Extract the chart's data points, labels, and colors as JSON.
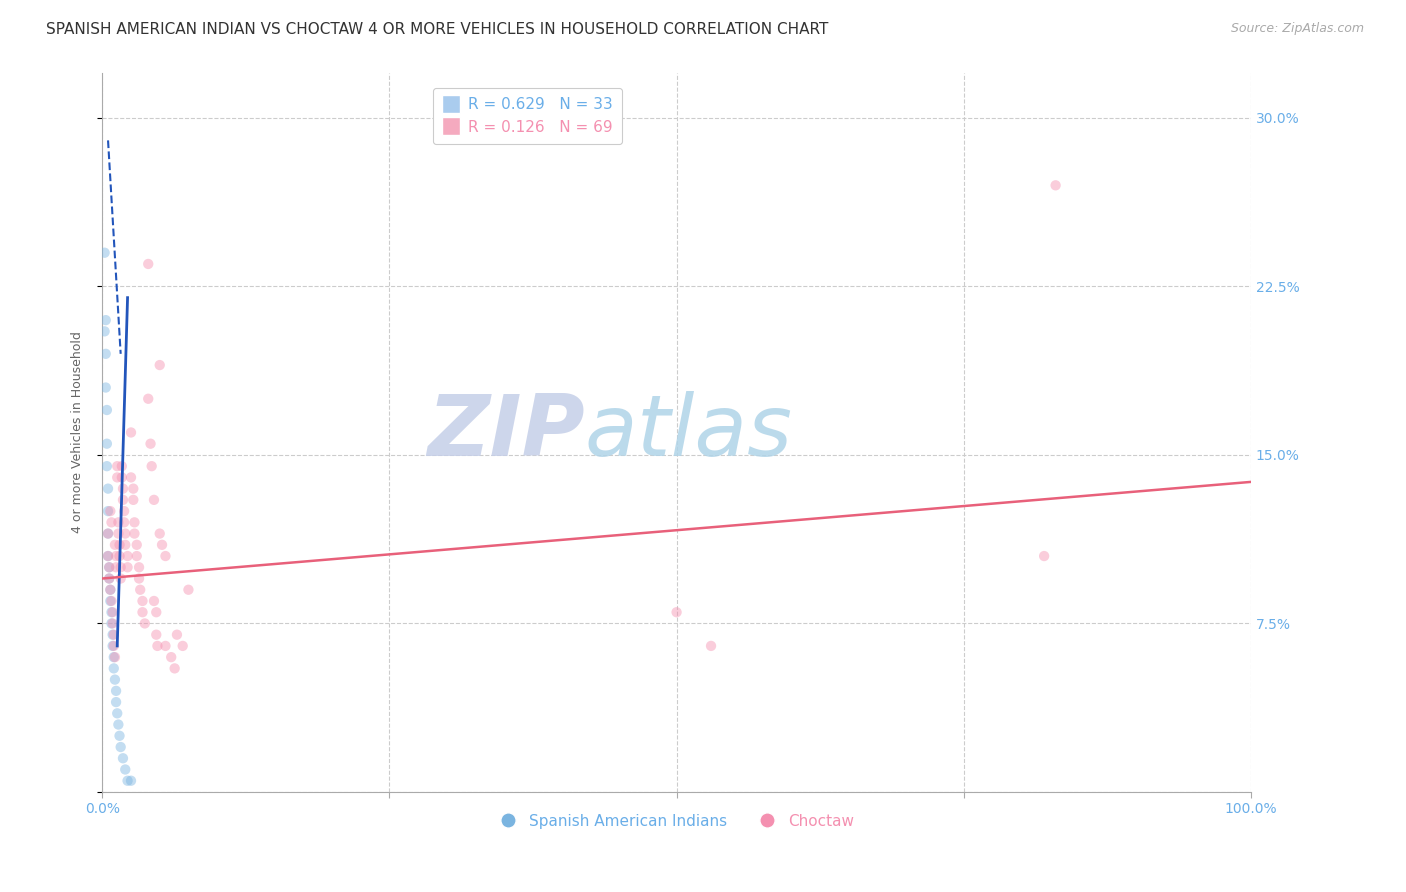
{
  "title": "SPANISH AMERICAN INDIAN VS CHOCTAW 4 OR MORE VEHICLES IN HOUSEHOLD CORRELATION CHART",
  "source": "Source: ZipAtlas.com",
  "ylabel": "4 or more Vehicles in Household",
  "watermark_zip": "ZIP",
  "watermark_atlas": "atlas",
  "xlim": [
    0,
    1.0
  ],
  "ylim": [
    0,
    0.32
  ],
  "yticks": [
    0.0,
    0.075,
    0.15,
    0.225,
    0.3
  ],
  "ytick_labels_right": [
    "",
    "7.5%",
    "15.0%",
    "22.5%",
    "30.0%"
  ],
  "xticks": [
    0.0,
    0.25,
    0.5,
    0.75,
    1.0
  ],
  "xtick_labels": [
    "0.0%",
    "",
    "",
    "",
    "100.0%"
  ],
  "axis_color": "#6aaee8",
  "grid_color": "#cccccc",
  "blue_scatter_x": [
    0.002,
    0.002,
    0.003,
    0.003,
    0.003,
    0.004,
    0.004,
    0.004,
    0.005,
    0.005,
    0.005,
    0.005,
    0.006,
    0.006,
    0.007,
    0.007,
    0.008,
    0.008,
    0.009,
    0.009,
    0.01,
    0.01,
    0.011,
    0.012,
    0.012,
    0.013,
    0.014,
    0.015,
    0.016,
    0.018,
    0.02,
    0.022,
    0.025
  ],
  "blue_scatter_y": [
    0.24,
    0.205,
    0.195,
    0.18,
    0.21,
    0.17,
    0.155,
    0.145,
    0.135,
    0.125,
    0.115,
    0.105,
    0.1,
    0.095,
    0.09,
    0.085,
    0.08,
    0.075,
    0.07,
    0.065,
    0.06,
    0.055,
    0.05,
    0.045,
    0.04,
    0.035,
    0.03,
    0.025,
    0.02,
    0.015,
    0.01,
    0.005,
    0.005
  ],
  "pink_scatter": [
    [
      0.005,
      0.115
    ],
    [
      0.005,
      0.105
    ],
    [
      0.006,
      0.1
    ],
    [
      0.006,
      0.095
    ],
    [
      0.007,
      0.09
    ],
    [
      0.007,
      0.125
    ],
    [
      0.008,
      0.12
    ],
    [
      0.008,
      0.085
    ],
    [
      0.009,
      0.08
    ],
    [
      0.009,
      0.075
    ],
    [
      0.01,
      0.07
    ],
    [
      0.01,
      0.065
    ],
    [
      0.011,
      0.06
    ],
    [
      0.011,
      0.11
    ],
    [
      0.012,
      0.105
    ],
    [
      0.012,
      0.1
    ],
    [
      0.013,
      0.145
    ],
    [
      0.013,
      0.14
    ],
    [
      0.014,
      0.12
    ],
    [
      0.014,
      0.115
    ],
    [
      0.015,
      0.11
    ],
    [
      0.015,
      0.105
    ],
    [
      0.016,
      0.1
    ],
    [
      0.016,
      0.095
    ],
    [
      0.017,
      0.145
    ],
    [
      0.017,
      0.14
    ],
    [
      0.018,
      0.135
    ],
    [
      0.018,
      0.13
    ],
    [
      0.019,
      0.125
    ],
    [
      0.019,
      0.12
    ],
    [
      0.02,
      0.115
    ],
    [
      0.02,
      0.11
    ],
    [
      0.022,
      0.105
    ],
    [
      0.022,
      0.1
    ],
    [
      0.025,
      0.16
    ],
    [
      0.025,
      0.14
    ],
    [
      0.027,
      0.135
    ],
    [
      0.027,
      0.13
    ],
    [
      0.028,
      0.12
    ],
    [
      0.028,
      0.115
    ],
    [
      0.03,
      0.11
    ],
    [
      0.03,
      0.105
    ],
    [
      0.032,
      0.1
    ],
    [
      0.032,
      0.095
    ],
    [
      0.033,
      0.09
    ],
    [
      0.035,
      0.085
    ],
    [
      0.035,
      0.08
    ],
    [
      0.037,
      0.075
    ],
    [
      0.04,
      0.235
    ],
    [
      0.04,
      0.175
    ],
    [
      0.042,
      0.155
    ],
    [
      0.043,
      0.145
    ],
    [
      0.045,
      0.13
    ],
    [
      0.045,
      0.085
    ],
    [
      0.047,
      0.08
    ],
    [
      0.047,
      0.07
    ],
    [
      0.048,
      0.065
    ],
    [
      0.05,
      0.19
    ],
    [
      0.05,
      0.115
    ],
    [
      0.052,
      0.11
    ],
    [
      0.055,
      0.105
    ],
    [
      0.055,
      0.065
    ],
    [
      0.06,
      0.06
    ],
    [
      0.063,
      0.055
    ],
    [
      0.065,
      0.07
    ],
    [
      0.07,
      0.065
    ],
    [
      0.075,
      0.09
    ],
    [
      0.5,
      0.08
    ],
    [
      0.53,
      0.065
    ],
    [
      0.82,
      0.105
    ],
    [
      0.83,
      0.27
    ]
  ],
  "pink_line_x0": 0.0,
  "pink_line_x1": 1.0,
  "pink_line_y0": 0.095,
  "pink_line_y1": 0.138,
  "blue_line_solid_x0": 0.013,
  "blue_line_solid_x1": 0.022,
  "blue_line_solid_y0": 0.065,
  "blue_line_solid_y1": 0.22,
  "blue_line_dash_x0": 0.005,
  "blue_line_dash_x1": 0.016,
  "blue_line_dash_y0": 0.29,
  "blue_line_dash_y1": 0.195,
  "bg_color": "#ffffff",
  "title_fontsize": 11,
  "source_fontsize": 9,
  "axis_label_fontsize": 9,
  "tick_fontsize": 10,
  "legend_fontsize": 11,
  "watermark_color_zip": "#c5cfe8",
  "watermark_color_atlas": "#b0d4e8",
  "watermark_fontsize": 62,
  "scatter_size": 55,
  "scatter_alpha": 0.45,
  "blue_color": "#7ab4e0",
  "pink_color": "#f490b0",
  "blue_line_color": "#2255bb",
  "pink_line_color": "#e8607a"
}
